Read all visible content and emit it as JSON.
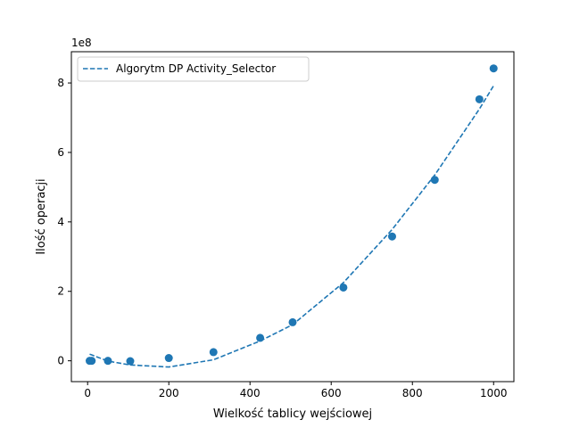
{
  "chart_data": {
    "type": "scatter",
    "xlabel": "Wielkość tablicy wejściowej",
    "ylabel": "Ilość operacji",
    "offset_label": "1e8",
    "xlim": [
      -40,
      1050
    ],
    "ylim": [
      -0.6,
      8.9
    ],
    "y_multiplier": 100000000,
    "x_ticks": [
      0,
      200,
      400,
      600,
      800,
      1000
    ],
    "x_tick_labels": [
      "0",
      "200",
      "400",
      "600",
      "800",
      "1000"
    ],
    "y_ticks": [
      0,
      2,
      4,
      6,
      8
    ],
    "y_tick_labels": [
      "0",
      "2",
      "4",
      "6",
      "8"
    ],
    "grid": false,
    "legend_position": "upper-left",
    "series": [
      {
        "name": "Algorytm DP Activity_Selector",
        "kind": "fit-line",
        "style": "dashed",
        "color": "#1f77b4",
        "x": [
          5,
          10,
          50,
          105,
          200,
          310,
          425,
          505,
          630,
          750,
          855,
          965,
          1000
        ],
        "y": [
          0.19,
          0.17,
          -0.01,
          -0.12,
          -0.18,
          0.03,
          0.57,
          1.04,
          2.25,
          3.78,
          5.35,
          7.25,
          7.92
        ]
      },
      {
        "kind": "markers",
        "marker": "circle",
        "color": "#1f77b4",
        "x": [
          5,
          10,
          50,
          105,
          200,
          310,
          425,
          505,
          630,
          750,
          855,
          965,
          1000
        ],
        "y": [
          0.0,
          0.0,
          0.0,
          -0.01,
          0.08,
          0.25,
          0.66,
          1.11,
          2.11,
          3.58,
          5.21,
          7.53,
          8.42
        ]
      }
    ]
  }
}
